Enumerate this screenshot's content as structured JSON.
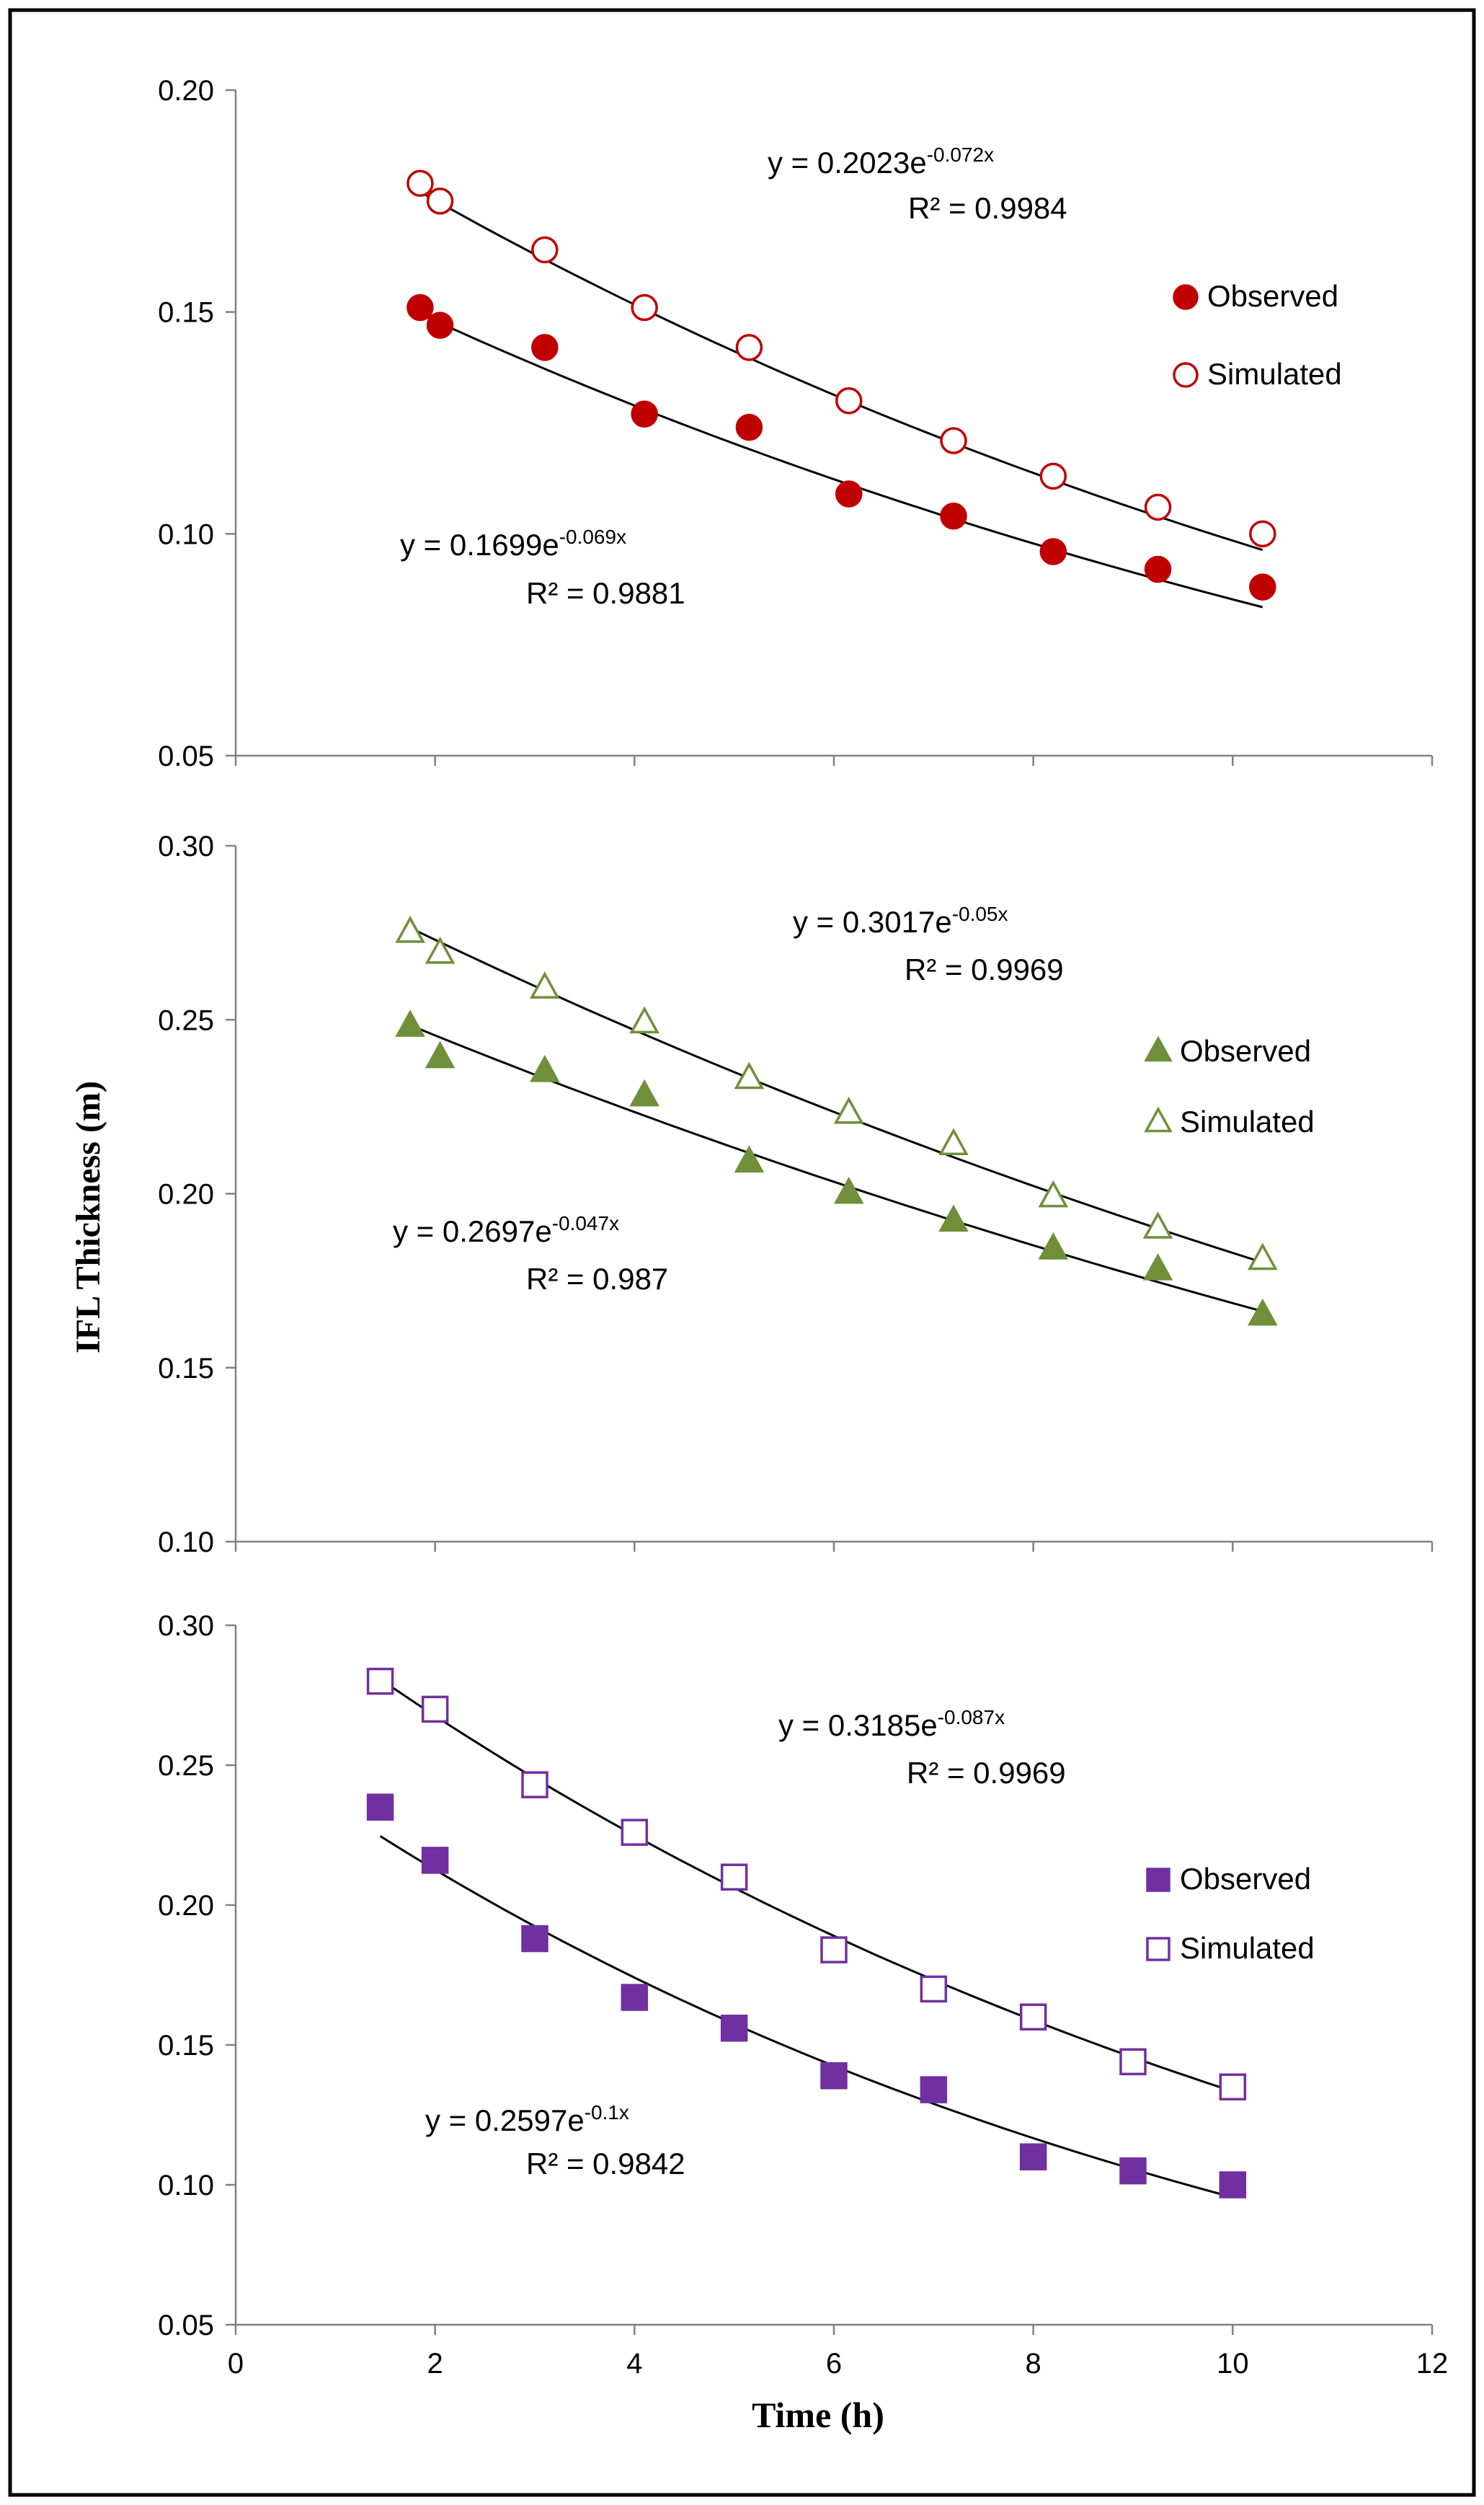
{
  "figure": {
    "ylabel": "IFL Thickness (m)",
    "xlabel": "Time (h)",
    "xlim": [
      0,
      12
    ],
    "xticks": [
      "0",
      "2",
      "4",
      "6",
      "8",
      "10",
      "12"
    ],
    "border_color": "#000000"
  },
  "chart_data": [
    {
      "type": "scatter",
      "ylim": [
        0.05,
        0.2
      ],
      "yticks": [
        "0.20",
        "0.15",
        "0.10",
        "0.05"
      ],
      "legend_position": "right",
      "series": [
        {
          "name": "Observed",
          "marker": "circle",
          "filled": true,
          "color": "#C00000",
          "points": [
            [
              1.85,
              0.151
            ],
            [
              2.05,
              0.147
            ],
            [
              3.1,
              0.142
            ],
            [
              4.1,
              0.127
            ],
            [
              5.15,
              0.124
            ],
            [
              6.15,
              0.109
            ],
            [
              7.2,
              0.104
            ],
            [
              8.2,
              0.096
            ],
            [
              9.25,
              0.092
            ],
            [
              10.3,
              0.088
            ]
          ],
          "fit": {
            "a": 0.1699,
            "b": -0.069,
            "equation": "y = 0.1699e",
            "exponent": "-0.069x",
            "r2": "R² = 0.9881"
          }
        },
        {
          "name": "Simulated",
          "marker": "circle",
          "filled": false,
          "color": "#C00000",
          "points": [
            [
              1.85,
              0.179
            ],
            [
              2.05,
              0.175
            ],
            [
              3.1,
              0.164
            ],
            [
              4.1,
              0.151
            ],
            [
              5.15,
              0.142
            ],
            [
              6.15,
              0.13
            ],
            [
              7.2,
              0.121
            ],
            [
              8.2,
              0.113
            ],
            [
              9.25,
              0.106
            ],
            [
              10.3,
              0.1
            ]
          ],
          "fit": {
            "a": 0.2023,
            "b": -0.072,
            "equation": "y = 0.2023e",
            "exponent": "-0.072x",
            "r2": "R² = 0.9984"
          }
        }
      ]
    },
    {
      "type": "scatter",
      "ylim": [
        0.1,
        0.3
      ],
      "yticks": [
        "0.30",
        "0.25",
        "0.20",
        "0.15",
        "0.10"
      ],
      "legend_position": "right",
      "series": [
        {
          "name": "Observed",
          "marker": "triangle",
          "filled": true,
          "color": "#6F8F3A",
          "points": [
            [
              1.75,
              0.248
            ],
            [
              2.05,
              0.239
            ],
            [
              3.1,
              0.235
            ],
            [
              4.1,
              0.228
            ],
            [
              5.15,
              0.209
            ],
            [
              6.15,
              0.2
            ],
            [
              7.2,
              0.192
            ],
            [
              8.2,
              0.184
            ],
            [
              9.25,
              0.178
            ],
            [
              10.3,
              0.165
            ]
          ],
          "fit": {
            "a": 0.2697,
            "b": -0.047,
            "equation": "y = 0.2697e",
            "exponent": "-0.047x",
            "r2": "R² = 0.987"
          }
        },
        {
          "name": "Simulated",
          "marker": "triangle",
          "filled": false,
          "color": "#6F8F3A",
          "points": [
            [
              1.75,
              0.275
            ],
            [
              2.05,
              0.269
            ],
            [
              3.1,
              0.259
            ],
            [
              4.1,
              0.249
            ],
            [
              5.15,
              0.233
            ],
            [
              6.15,
              0.223
            ],
            [
              7.2,
              0.214
            ],
            [
              8.2,
              0.199
            ],
            [
              9.25,
              0.19
            ],
            [
              10.3,
              0.181
            ]
          ],
          "fit": {
            "a": 0.3017,
            "b": -0.05,
            "equation": "y = 0.3017e",
            "exponent": "-0.05x",
            "r2": "R² = 0.9969"
          }
        }
      ]
    },
    {
      "type": "scatter",
      "ylim": [
        0.05,
        0.3
      ],
      "yticks": [
        "0.30",
        "0.25",
        "0.20",
        "0.15",
        "0.10",
        "0.05"
      ],
      "legend_position": "right",
      "series": [
        {
          "name": "Observed",
          "marker": "square",
          "filled": true,
          "color": "#7030A0",
          "points": [
            [
              1.45,
              0.235
            ],
            [
              2.0,
              0.216
            ],
            [
              3.0,
              0.188
            ],
            [
              4.0,
              0.167
            ],
            [
              5.0,
              0.156
            ],
            [
              6.0,
              0.139
            ],
            [
              7.0,
              0.134
            ],
            [
              8.0,
              0.11
            ],
            [
              9.0,
              0.105
            ],
            [
              10.0,
              0.1
            ]
          ],
          "fit": {
            "a": 0.2597,
            "b": -0.1,
            "equation": "y = 0.2597e",
            "exponent": "-0.1x",
            "r2": "R² = 0.9842"
          }
        },
        {
          "name": "Simulated",
          "marker": "square",
          "filled": false,
          "color": "#7030A0",
          "points": [
            [
              1.45,
              0.28
            ],
            [
              2.0,
              0.27
            ],
            [
              3.0,
              0.243
            ],
            [
              4.0,
              0.226
            ],
            [
              5.0,
              0.21
            ],
            [
              6.0,
              0.184
            ],
            [
              7.0,
              0.17
            ],
            [
              8.0,
              0.16
            ],
            [
              9.0,
              0.144
            ],
            [
              10.0,
              0.135
            ]
          ],
          "fit": {
            "a": 0.3185,
            "b": -0.087,
            "equation": "y = 0.3185e",
            "exponent": "-0.087x",
            "r2": "R² = 0.9969"
          }
        }
      ]
    }
  ]
}
